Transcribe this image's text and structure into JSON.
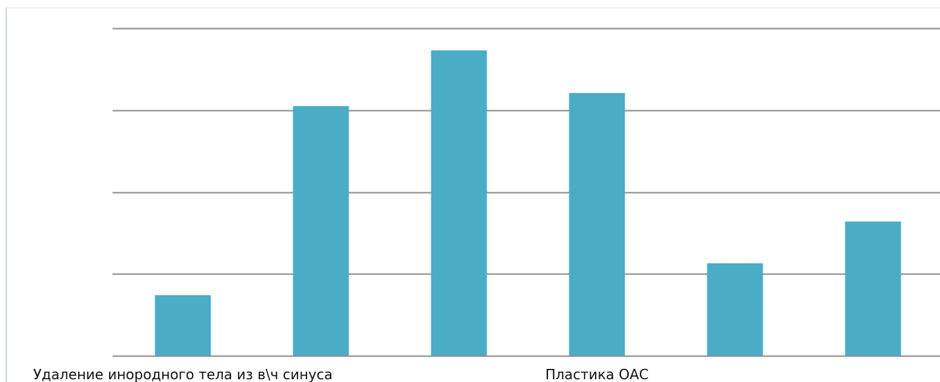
{
  "chart_data": {
    "type": "bar",
    "title": "",
    "xlabel": "",
    "ylabel": "",
    "categories": [
      "Удаление инородного тела из в\\ч синуса",
      "",
      "",
      "Пластика ОАС",
      "",
      ""
    ],
    "values": [
      7.4,
      30.5,
      37.3,
      32.1,
      11.3,
      16.4
    ],
    "ylim": [
      0,
      40
    ],
    "y_ticks": [
      0,
      10,
      20,
      30,
      40
    ],
    "y_tick_labels_visible": false,
    "grid": true,
    "legend": "none",
    "colors": {
      "bar": "#4bacc6",
      "grid": "#8c8c8c",
      "axis": "#8c8c8c",
      "frame_left": "#c9d7ea",
      "frame_top": "#e4e4e4",
      "label": "#111111"
    }
  }
}
